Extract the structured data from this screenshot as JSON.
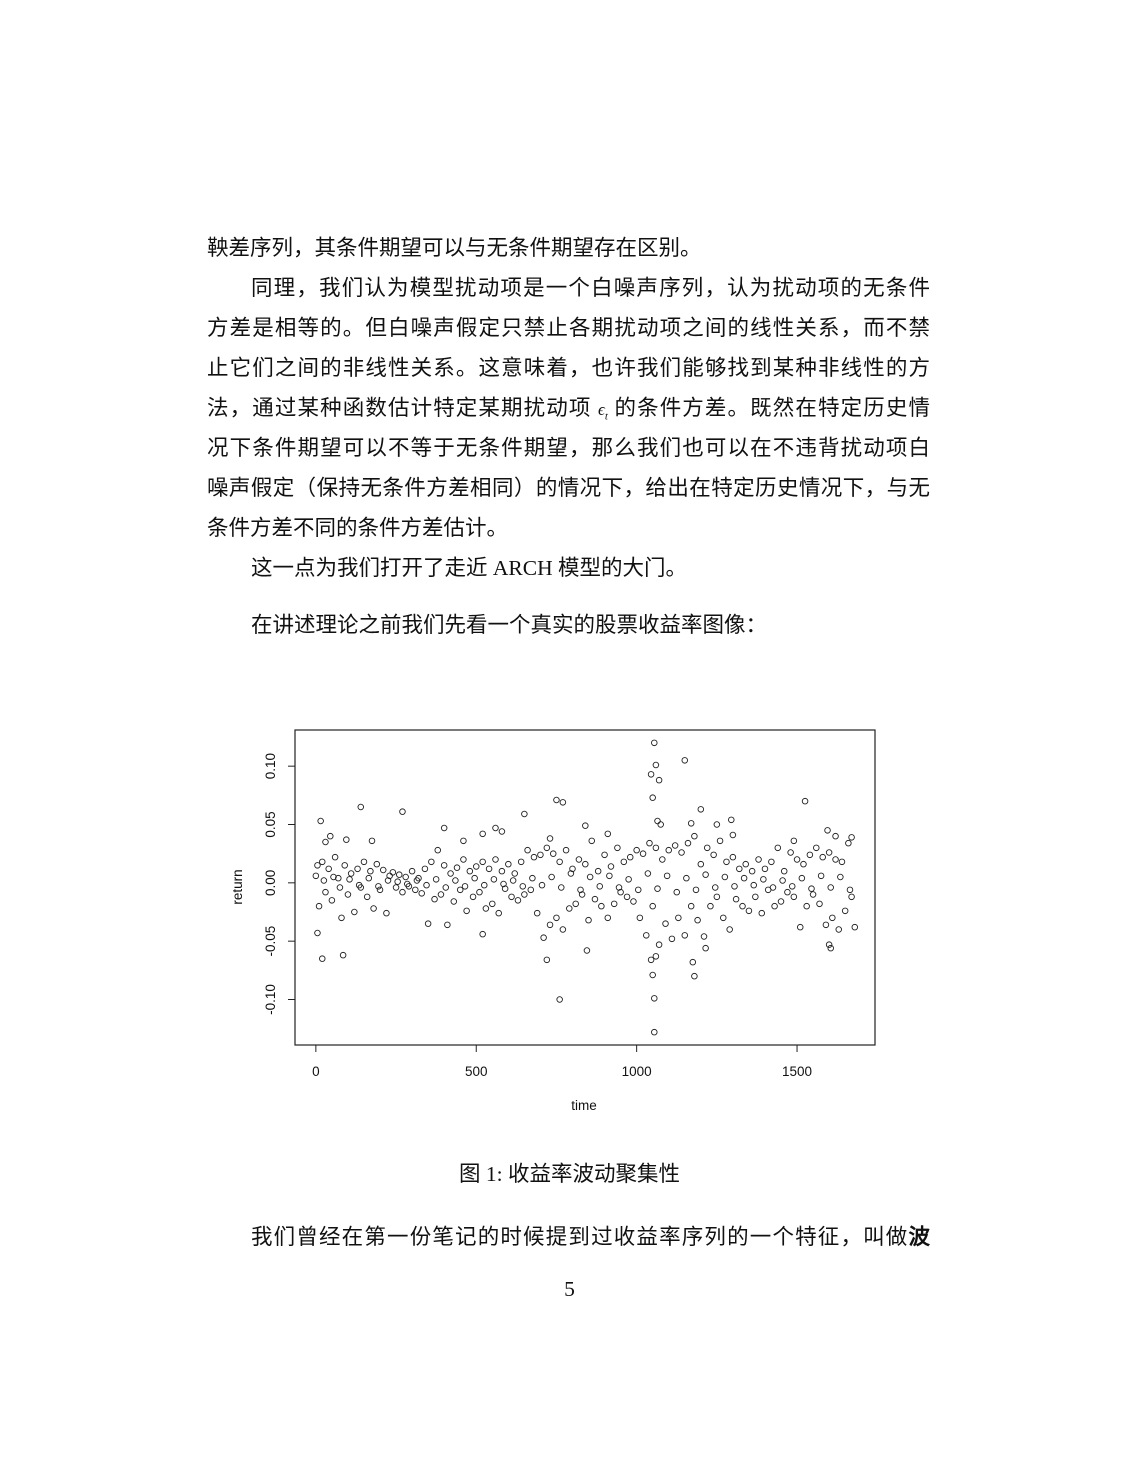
{
  "body": {
    "lines": [
      "鞅差序列，其条件期望可以与无条件期望存在区别。",
      "同理，我们认为模型扰动项是一个白噪声序列，认为扰动项的无条件",
      "方差是相等的。但白噪声假定只禁止各期扰动项之间的线性关系，而不禁",
      "止它们之间的非线性关系。这意味着，也许我们能够找到某种非线性的方",
      "法，通过某种函数估计特定某期扰动项",
      "的条件方差。既然在特定历史情",
      "况下条件期望可以不等于无条件期望，那么我们也可以在不违背扰动项白",
      "噪声假定（保持无条件方差相同）的情况下，给出在特定历史情况下，与无",
      "条件方差不同的条件方差估计。",
      "这一点为我们打开了走近 ARCH 模型的大门。",
      "在讲述理论之前我们先看一个真实的股票收益率图像："
    ],
    "epsilon": "ϵ",
    "epsilon_sub": "t",
    "last_line_prefix": "我们曾经在第一份笔记的时候提到过收益率序列的一个特征，叫做",
    "last_line_bold": "波"
  },
  "figure": {
    "caption": "图 1: 收益率波动聚集性"
  },
  "page_number": "5",
  "chart_data": {
    "type": "scatter",
    "title": "",
    "xlabel": "time",
    "ylabel": "return",
    "xlim": [
      -65,
      1743
    ],
    "ylim": [
      -0.139,
      0.131
    ],
    "x_ticks": [
      "0",
      "500",
      "1000",
      "1500"
    ],
    "x_tick_values": [
      0,
      500,
      1000,
      1500
    ],
    "y_ticks": [
      "-0.10",
      "-0.05",
      "0.00",
      "0.05",
      "0.10"
    ],
    "y_tick_values": [
      -0.1,
      -0.05,
      0.0,
      0.05,
      0.1
    ],
    "marker": "open-circle",
    "grid": false,
    "points": [
      [
        1055,
        0.12
      ],
      [
        1060,
        0.101
      ],
      [
        1070,
        0.088
      ],
      [
        1045,
        0.093
      ],
      [
        1050,
        0.073
      ],
      [
        1150,
        0.105
      ],
      [
        140,
        0.065
      ],
      [
        270,
        0.061
      ],
      [
        15,
        0.053
      ],
      [
        650,
        0.059
      ],
      [
        750,
        0.071
      ],
      [
        770,
        0.069
      ],
      [
        1200,
        0.063
      ],
      [
        1525,
        0.07
      ],
      [
        1055,
        -0.128
      ],
      [
        1055,
        -0.099
      ],
      [
        760,
        -0.1
      ],
      [
        1050,
        -0.079
      ],
      [
        1180,
        -0.08
      ],
      [
        1175,
        -0.068
      ],
      [
        1045,
        -0.066
      ],
      [
        1060,
        -0.063
      ],
      [
        720,
        -0.066
      ],
      [
        20,
        -0.065
      ],
      [
        85,
        -0.062
      ],
      [
        5,
        -0.043
      ],
      [
        845,
        -0.058
      ],
      [
        1600,
        -0.053
      ],
      [
        1605,
        -0.056
      ],
      [
        1215,
        -0.056
      ],
      [
        520,
        -0.044
      ],
      [
        840,
        0.049
      ],
      [
        1295,
        0.054
      ],
      [
        1250,
        0.05
      ],
      [
        1170,
        0.051
      ],
      [
        560,
        0.047
      ],
      [
        400,
        0.047
      ],
      [
        1595,
        0.045
      ],
      [
        1065,
        0.053
      ],
      [
        1075,
        0.05
      ],
      [
        30,
        0.035
      ],
      [
        45,
        0.04
      ],
      [
        95,
        0.037
      ],
      [
        175,
        0.036
      ],
      [
        460,
        0.036
      ],
      [
        520,
        0.042
      ],
      [
        580,
        0.044
      ],
      [
        730,
        0.038
      ],
      [
        910,
        0.042
      ],
      [
        1300,
        0.041
      ],
      [
        1490,
        0.036
      ],
      [
        1620,
        0.04
      ],
      [
        1670,
        0.039
      ],
      [
        0,
        0.006
      ],
      [
        10,
        -0.02
      ],
      [
        20,
        0.018
      ],
      [
        30,
        -0.008
      ],
      [
        40,
        0.012
      ],
      [
        50,
        -0.015
      ],
      [
        60,
        0.022
      ],
      [
        70,
        0.004
      ],
      [
        80,
        -0.03
      ],
      [
        90,
        0.015
      ],
      [
        100,
        -0.01
      ],
      [
        110,
        0.008
      ],
      [
        120,
        -0.025
      ],
      [
        130,
        0.012
      ],
      [
        140,
        -0.004
      ],
      [
        150,
        0.018
      ],
      [
        160,
        -0.012
      ],
      [
        170,
        0.01
      ],
      [
        180,
        -0.022
      ],
      [
        190,
        0.016
      ],
      [
        200,
        -0.006
      ],
      [
        210,
        0.011
      ],
      [
        220,
        -0.026
      ],
      [
        230,
        0.006
      ],
      [
        240,
        0.009
      ],
      [
        250,
        -0.004
      ],
      [
        260,
        0.007
      ],
      [
        270,
        -0.008
      ],
      [
        280,
        0.005
      ],
      [
        290,
        -0.003
      ],
      [
        300,
        0.01
      ],
      [
        310,
        -0.006
      ],
      [
        320,
        0.004
      ],
      [
        330,
        -0.009
      ],
      [
        340,
        0.012
      ],
      [
        350,
        -0.035
      ],
      [
        360,
        0.018
      ],
      [
        370,
        -0.014
      ],
      [
        380,
        0.028
      ],
      [
        390,
        -0.01
      ],
      [
        400,
        0.015
      ],
      [
        410,
        -0.036
      ],
      [
        420,
        0.008
      ],
      [
        430,
        -0.016
      ],
      [
        440,
        0.013
      ],
      [
        450,
        -0.006
      ],
      [
        460,
        0.02
      ],
      [
        470,
        -0.024
      ],
      [
        480,
        0.01
      ],
      [
        490,
        -0.012
      ],
      [
        500,
        0.014
      ],
      [
        510,
        -0.008
      ],
      [
        520,
        0.018
      ],
      [
        530,
        -0.022
      ],
      [
        540,
        0.012
      ],
      [
        550,
        -0.018
      ],
      [
        560,
        0.02
      ],
      [
        570,
        -0.026
      ],
      [
        580,
        0.01
      ],
      [
        590,
        -0.005
      ],
      [
        600,
        0.016
      ],
      [
        610,
        -0.012
      ],
      [
        620,
        0.008
      ],
      [
        630,
        -0.015
      ],
      [
        640,
        0.018
      ],
      [
        650,
        -0.01
      ],
      [
        660,
        0.028
      ],
      [
        670,
        -0.006
      ],
      [
        680,
        0.022
      ],
      [
        690,
        -0.026
      ],
      [
        700,
        0.024
      ],
      [
        710,
        -0.047
      ],
      [
        720,
        0.03
      ],
      [
        730,
        -0.036
      ],
      [
        740,
        0.025
      ],
      [
        750,
        -0.03
      ],
      [
        760,
        0.018
      ],
      [
        770,
        -0.04
      ],
      [
        780,
        0.028
      ],
      [
        790,
        -0.022
      ],
      [
        800,
        0.012
      ],
      [
        810,
        -0.018
      ],
      [
        820,
        0.02
      ],
      [
        830,
        -0.01
      ],
      [
        840,
        0.016
      ],
      [
        850,
        -0.032
      ],
      [
        860,
        0.036
      ],
      [
        870,
        -0.014
      ],
      [
        880,
        0.01
      ],
      [
        890,
        -0.02
      ],
      [
        900,
        0.024
      ],
      [
        910,
        -0.03
      ],
      [
        920,
        0.014
      ],
      [
        930,
        -0.018
      ],
      [
        940,
        0.03
      ],
      [
        950,
        -0.008
      ],
      [
        960,
        0.018
      ],
      [
        970,
        -0.012
      ],
      [
        980,
        0.022
      ],
      [
        990,
        -0.016
      ],
      [
        1000,
        0.028
      ],
      [
        1010,
        -0.03
      ],
      [
        1020,
        0.025
      ],
      [
        1030,
        -0.045
      ],
      [
        1040,
        0.034
      ],
      [
        1050,
        -0.02
      ],
      [
        1060,
        0.03
      ],
      [
        1070,
        -0.053
      ],
      [
        1080,
        0.02
      ],
      [
        1090,
        -0.035
      ],
      [
        1100,
        0.028
      ],
      [
        1110,
        -0.048
      ],
      [
        1120,
        0.032
      ],
      [
        1130,
        -0.03
      ],
      [
        1140,
        0.026
      ],
      [
        1150,
        -0.045
      ],
      [
        1160,
        0.034
      ],
      [
        1170,
        -0.02
      ],
      [
        1180,
        0.04
      ],
      [
        1190,
        -0.032
      ],
      [
        1200,
        0.016
      ],
      [
        1210,
        -0.046
      ],
      [
        1220,
        0.03
      ],
      [
        1230,
        -0.02
      ],
      [
        1240,
        0.024
      ],
      [
        1250,
        -0.012
      ],
      [
        1260,
        0.036
      ],
      [
        1270,
        -0.03
      ],
      [
        1280,
        0.018
      ],
      [
        1290,
        -0.04
      ],
      [
        1300,
        0.022
      ],
      [
        1310,
        -0.014
      ],
      [
        1320,
        0.012
      ],
      [
        1330,
        -0.02
      ],
      [
        1340,
        0.016
      ],
      [
        1350,
        -0.024
      ],
      [
        1360,
        0.01
      ],
      [
        1370,
        -0.012
      ],
      [
        1380,
        0.02
      ],
      [
        1390,
        -0.026
      ],
      [
        1400,
        0.012
      ],
      [
        1410,
        -0.006
      ],
      [
        1420,
        0.018
      ],
      [
        1430,
        -0.02
      ],
      [
        1440,
        0.03
      ],
      [
        1450,
        -0.016
      ],
      [
        1460,
        0.01
      ],
      [
        1470,
        -0.008
      ],
      [
        1480,
        0.026
      ],
      [
        1490,
        -0.012
      ],
      [
        1500,
        0.02
      ],
      [
        1510,
        -0.038
      ],
      [
        1520,
        0.016
      ],
      [
        1530,
        -0.02
      ],
      [
        1540,
        0.024
      ],
      [
        1550,
        -0.01
      ],
      [
        1560,
        0.03
      ],
      [
        1570,
        -0.018
      ],
      [
        1580,
        0.022
      ],
      [
        1590,
        -0.036
      ],
      [
        1600,
        0.026
      ],
      [
        1610,
        -0.03
      ],
      [
        1620,
        0.02
      ],
      [
        1630,
        -0.04
      ],
      [
        1640,
        0.018
      ],
      [
        1650,
        -0.024
      ],
      [
        1660,
        0.034
      ],
      [
        1670,
        -0.012
      ],
      [
        1680,
        -0.038
      ],
      [
        5,
        0.015
      ],
      [
        25,
        0.002
      ],
      [
        55,
        0.005
      ],
      [
        75,
        -0.004
      ],
      [
        105,
        0.003
      ],
      [
        135,
        -0.002
      ],
      [
        165,
        0.004
      ],
      [
        195,
        -0.003
      ],
      [
        225,
        0.002
      ],
      [
        255,
        0.001
      ],
      [
        285,
        -0.001
      ],
      [
        315,
        0.002
      ],
      [
        345,
        -0.002
      ],
      [
        375,
        0.003
      ],
      [
        405,
        -0.004
      ],
      [
        435,
        0.002
      ],
      [
        465,
        -0.003
      ],
      [
        495,
        0.004
      ],
      [
        525,
        -0.002
      ],
      [
        555,
        0.003
      ],
      [
        585,
        -0.001
      ],
      [
        615,
        0.002
      ],
      [
        645,
        -0.003
      ],
      [
        675,
        0.004
      ],
      [
        705,
        -0.002
      ],
      [
        735,
        0.005
      ],
      [
        765,
        -0.004
      ],
      [
        795,
        0.008
      ],
      [
        825,
        -0.006
      ],
      [
        855,
        0.005
      ],
      [
        885,
        -0.003
      ],
      [
        915,
        0.006
      ],
      [
        945,
        -0.004
      ],
      [
        975,
        0.003
      ],
      [
        1005,
        -0.006
      ],
      [
        1035,
        0.008
      ],
      [
        1065,
        -0.005
      ],
      [
        1095,
        0.006
      ],
      [
        1125,
        -0.008
      ],
      [
        1155,
        0.004
      ],
      [
        1185,
        -0.006
      ],
      [
        1215,
        0.007
      ],
      [
        1245,
        -0.004
      ],
      [
        1275,
        0.005
      ],
      [
        1305,
        -0.003
      ],
      [
        1335,
        0.004
      ],
      [
        1365,
        -0.002
      ],
      [
        1395,
        0.003
      ],
      [
        1425,
        -0.004
      ],
      [
        1455,
        0.002
      ],
      [
        1485,
        -0.003
      ],
      [
        1515,
        0.004
      ],
      [
        1545,
        -0.005
      ],
      [
        1575,
        0.006
      ],
      [
        1605,
        -0.004
      ],
      [
        1635,
        0.005
      ],
      [
        1665,
        -0.006
      ]
    ]
  }
}
